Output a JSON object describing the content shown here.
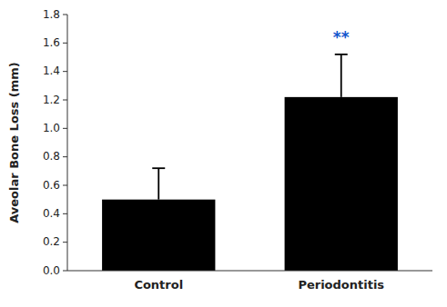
{
  "chart_data": {
    "type": "bar",
    "categories": [
      "Control",
      "Periodontitis"
    ],
    "values": [
      0.5,
      1.22
    ],
    "errors": [
      0.22,
      0.3
    ],
    "color": "#000000",
    "ylabel": "Aveolar Bone Loss (mm)",
    "ylim": [
      0.0,
      1.8
    ],
    "yticks": [
      {
        "value": 0.0,
        "label": "0.0"
      },
      0.2,
      0.4,
      0.6,
      0.8,
      {
        "value": 1.0,
        "label": "1.0"
      },
      1.2,
      1.4,
      1.6,
      1.8
    ],
    "grid": false,
    "annotations": [
      {
        "text": "**",
        "x": "Periodontitis",
        "y": 1.6,
        "color": "#1155CC"
      }
    ]
  }
}
